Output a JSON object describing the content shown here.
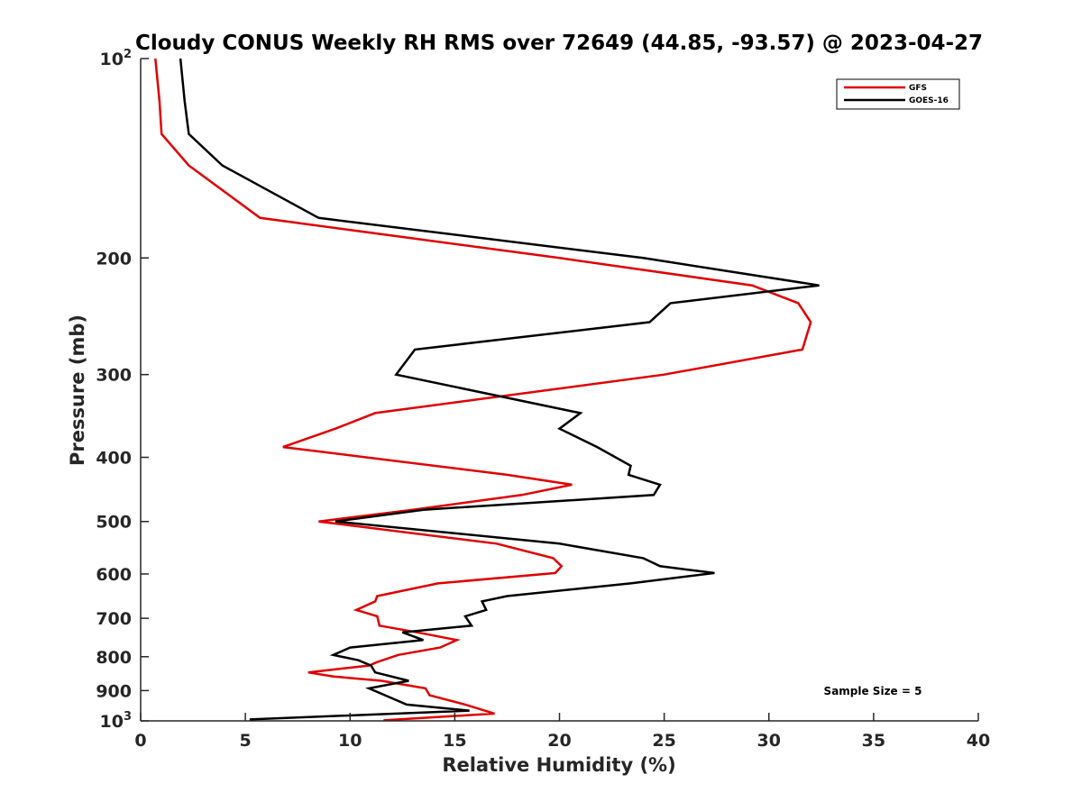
{
  "chart_data": {
    "type": "line",
    "title": "Cloudy CONUS Weekly RH RMS over 72649 (44.85, -93.57) @ 2023-04-27",
    "xlabel": "Relative Humidity (%)",
    "ylabel": "Pressure (mb)",
    "xlim": [
      0,
      40
    ],
    "ylim": [
      100,
      1000
    ],
    "y_scale": "log",
    "y_reversed": true,
    "x_ticks": [
      "0",
      "5",
      "10",
      "15",
      "20",
      "25",
      "30",
      "35",
      "40"
    ],
    "y_ticks": [
      {
        "value": 100,
        "base": "10",
        "exp": "2"
      },
      {
        "value": 200,
        "label": "200"
      },
      {
        "value": 300,
        "label": "300"
      },
      {
        "value": 400,
        "label": "400"
      },
      {
        "value": 500,
        "label": "500"
      },
      {
        "value": 600,
        "label": "600"
      },
      {
        "value": 700,
        "label": "700"
      },
      {
        "value": 800,
        "label": "800"
      },
      {
        "value": 900,
        "label": "900"
      },
      {
        "value": 1000,
        "base": "10",
        "exp": "3"
      }
    ],
    "legend_position": "top-right",
    "annotation": "Sample Size = 5",
    "series": [
      {
        "name": "GFS",
        "color": "#e00000",
        "points": [
          [
            0.7,
            100
          ],
          [
            0.9,
            116
          ],
          [
            1.0,
            130
          ],
          [
            2.3,
            145
          ],
          [
            5.7,
            174
          ],
          [
            20.0,
            200
          ],
          [
            29.2,
            220
          ],
          [
            31.4,
            234
          ],
          [
            32.0,
            250
          ],
          [
            31.6,
            275
          ],
          [
            25.0,
            300
          ],
          [
            11.2,
            343
          ],
          [
            9.3,
            362
          ],
          [
            6.8,
            386
          ],
          [
            17.5,
            425
          ],
          [
            20.6,
            440
          ],
          [
            18.2,
            456
          ],
          [
            13.0,
            480
          ],
          [
            8.5,
            500
          ],
          [
            17.0,
            540
          ],
          [
            19.7,
            568
          ],
          [
            20.1,
            584
          ],
          [
            19.8,
            598
          ],
          [
            14.2,
            620
          ],
          [
            11.3,
            648
          ],
          [
            11.2,
            660
          ],
          [
            10.3,
            680
          ],
          [
            11.3,
            695
          ],
          [
            11.4,
            718
          ],
          [
            13.2,
            735
          ],
          [
            15.1,
            755
          ],
          [
            14.3,
            775
          ],
          [
            12.3,
            795
          ],
          [
            11.3,
            815
          ],
          [
            10.9,
            825
          ],
          [
            8.0,
            845
          ],
          [
            9.2,
            857
          ],
          [
            11.5,
            870
          ],
          [
            13.6,
            893
          ],
          [
            13.8,
            915
          ],
          [
            15.5,
            945
          ],
          [
            16.9,
            975
          ],
          [
            11.6,
            998
          ]
        ]
      },
      {
        "name": "GOES-16",
        "color": "#000000",
        "points": [
          [
            1.9,
            100
          ],
          [
            2.1,
            116
          ],
          [
            2.3,
            130
          ],
          [
            3.9,
            145
          ],
          [
            8.5,
            174
          ],
          [
            24.0,
            200
          ],
          [
            32.4,
            220
          ],
          [
            25.3,
            234
          ],
          [
            24.3,
            250
          ],
          [
            13.1,
            275
          ],
          [
            12.2,
            300
          ],
          [
            21.0,
            343
          ],
          [
            20.0,
            362
          ],
          [
            21.8,
            386
          ],
          [
            23.4,
            412
          ],
          [
            23.3,
            425
          ],
          [
            24.8,
            440
          ],
          [
            24.5,
            456
          ],
          [
            13.5,
            480
          ],
          [
            9.3,
            500
          ],
          [
            20.0,
            540
          ],
          [
            24.0,
            568
          ],
          [
            24.8,
            584
          ],
          [
            27.4,
            598
          ],
          [
            23.4,
            620
          ],
          [
            17.5,
            648
          ],
          [
            16.3,
            660
          ],
          [
            16.5,
            680
          ],
          [
            15.5,
            695
          ],
          [
            15.8,
            718
          ],
          [
            12.5,
            735
          ],
          [
            13.5,
            755
          ],
          [
            10.0,
            775
          ],
          [
            9.2,
            795
          ],
          [
            10.4,
            810
          ],
          [
            11.0,
            825
          ],
          [
            11.2,
            845
          ],
          [
            12.8,
            870
          ],
          [
            10.9,
            893
          ],
          [
            12.7,
            945
          ],
          [
            15.7,
            965
          ],
          [
            5.2,
            995
          ]
        ]
      }
    ]
  }
}
